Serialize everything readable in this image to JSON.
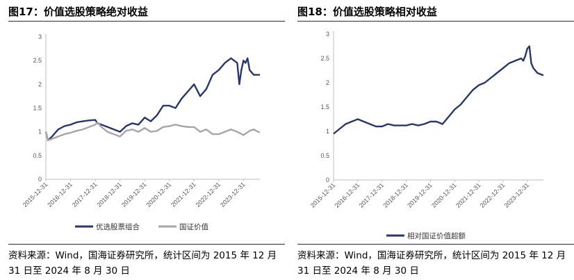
{
  "left": {
    "title": "图17：价值选股策略绝对收益",
    "source": "资料来源：Wind，国海证券研究所，统计区间为 2015 年 12 月 31 日至 2024 年 8 月 30 日"
  },
  "right": {
    "title": "图18：价值选股策略相对收益",
    "source": "资料来源：Wind，国海证券研究所，统计区间为 2015 年 12 月 31 日至 2024 年 8 月 30 日"
  },
  "chart_data": [
    {
      "type": "line",
      "ylim": [
        0,
        3
      ],
      "yticks": [
        "0",
        "0.5",
        "1",
        "1.5",
        "2",
        "2.5",
        "3"
      ],
      "xlim": [
        "2015-12-31",
        "2024-08-30"
      ],
      "xticks": [
        "2015-12-31",
        "2016-12-31",
        "2017-12-31",
        "2018-12-31",
        "2019-12-31",
        "2020-12-31",
        "2021-12-31",
        "2022-12-31",
        "2023-12-31"
      ],
      "grid": false,
      "legend": "bottom",
      "series": [
        {
          "name": "优选股票组合",
          "color": "#243673",
          "x": [
            "2015-12-31",
            "2016-01-31",
            "2016-03-31",
            "2016-06-30",
            "2016-09-30",
            "2016-12-31",
            "2017-03-31",
            "2017-06-30",
            "2017-09-30",
            "2017-12-31",
            "2018-01-31",
            "2018-03-31",
            "2018-06-30",
            "2018-09-30",
            "2018-12-31",
            "2019-03-31",
            "2019-06-30",
            "2019-09-30",
            "2019-12-31",
            "2020-03-31",
            "2020-06-30",
            "2020-09-30",
            "2020-12-31",
            "2021-03-31",
            "2021-06-30",
            "2021-09-30",
            "2021-12-31",
            "2022-03-31",
            "2022-06-30",
            "2022-09-30",
            "2022-12-31",
            "2023-03-31",
            "2023-06-30",
            "2023-09-30",
            "2023-10-31",
            "2023-11-30",
            "2023-12-31",
            "2024-01-31",
            "2024-02-29",
            "2024-03-31",
            "2024-05-31",
            "2024-08-30"
          ],
          "values": [
            1.0,
            0.82,
            0.9,
            1.05,
            1.12,
            1.15,
            1.2,
            1.22,
            1.24,
            1.25,
            1.18,
            1.15,
            1.1,
            1.05,
            1.0,
            1.12,
            1.18,
            1.15,
            1.3,
            1.22,
            1.35,
            1.55,
            1.55,
            1.5,
            1.7,
            1.85,
            2.0,
            1.75,
            1.9,
            2.2,
            2.3,
            2.45,
            2.55,
            2.45,
            2.0,
            2.3,
            2.5,
            2.45,
            2.55,
            2.3,
            2.2,
            2.2
          ]
        },
        {
          "name": "国证价值",
          "color": "#a6a6a6",
          "x": [
            "2015-12-31",
            "2016-01-31",
            "2016-03-31",
            "2016-06-30",
            "2016-09-30",
            "2016-12-31",
            "2017-03-31",
            "2017-06-30",
            "2017-09-30",
            "2017-12-31",
            "2018-01-31",
            "2018-03-31",
            "2018-06-30",
            "2018-09-30",
            "2018-12-31",
            "2019-03-31",
            "2019-06-30",
            "2019-09-30",
            "2019-12-31",
            "2020-03-31",
            "2020-06-30",
            "2020-09-30",
            "2020-12-31",
            "2021-03-31",
            "2021-06-30",
            "2021-09-30",
            "2021-12-31",
            "2022-03-31",
            "2022-06-30",
            "2022-09-30",
            "2022-12-31",
            "2023-03-31",
            "2023-06-30",
            "2023-09-30",
            "2023-12-31",
            "2024-03-31",
            "2024-05-31",
            "2024-08-30"
          ],
          "values": [
            1.0,
            0.82,
            0.85,
            0.9,
            0.95,
            0.98,
            1.02,
            1.05,
            1.1,
            1.15,
            1.2,
            1.1,
            1.0,
            0.95,
            0.9,
            1.02,
            1.05,
            1.0,
            1.08,
            1.0,
            1.02,
            1.1,
            1.12,
            1.15,
            1.12,
            1.1,
            1.1,
            1.0,
            1.05,
            0.95,
            0.95,
            1.0,
            1.05,
            1.0,
            0.93,
            1.02,
            1.05,
            0.98
          ]
        }
      ]
    },
    {
      "type": "line",
      "ylim": [
        0,
        3
      ],
      "yticks": [
        "0",
        "0.5",
        "1",
        "1.5",
        "2",
        "2.5",
        "3"
      ],
      "xlim": [
        "2015-12-31",
        "2024-08-30"
      ],
      "xticks": [
        "2015-12-31",
        "2016-12-31",
        "2017-12-31",
        "2018-12-31",
        "2019-12-31",
        "2020-12-31",
        "2021-12-31",
        "2022-12-31",
        "2023-12-31"
      ],
      "grid": false,
      "legend": "bottom",
      "series": [
        {
          "name": "相对国证价值超额",
          "color": "#243673",
          "x": [
            "2015-12-31",
            "2016-03-31",
            "2016-06-30",
            "2016-09-30",
            "2016-12-31",
            "2017-03-31",
            "2017-06-30",
            "2017-09-30",
            "2017-12-31",
            "2018-03-31",
            "2018-06-30",
            "2018-09-30",
            "2018-12-31",
            "2019-03-31",
            "2019-06-30",
            "2019-09-30",
            "2019-12-31",
            "2020-03-31",
            "2020-06-30",
            "2020-09-30",
            "2020-12-31",
            "2021-03-31",
            "2021-06-30",
            "2021-09-30",
            "2021-12-31",
            "2022-03-31",
            "2022-06-30",
            "2022-09-30",
            "2022-12-31",
            "2023-03-31",
            "2023-06-30",
            "2023-09-30",
            "2023-10-31",
            "2023-11-30",
            "2023-12-31",
            "2024-01-31",
            "2024-02-29",
            "2024-03-31",
            "2024-05-31",
            "2024-08-30"
          ],
          "values": [
            0.95,
            1.05,
            1.15,
            1.2,
            1.25,
            1.2,
            1.15,
            1.1,
            1.1,
            1.15,
            1.12,
            1.12,
            1.12,
            1.15,
            1.12,
            1.15,
            1.2,
            1.2,
            1.15,
            1.3,
            1.45,
            1.55,
            1.7,
            1.85,
            1.95,
            2.0,
            2.1,
            2.2,
            2.3,
            2.4,
            2.45,
            2.5,
            2.45,
            2.55,
            2.7,
            2.75,
            2.4,
            2.3,
            2.2,
            2.15
          ]
        }
      ]
    }
  ]
}
